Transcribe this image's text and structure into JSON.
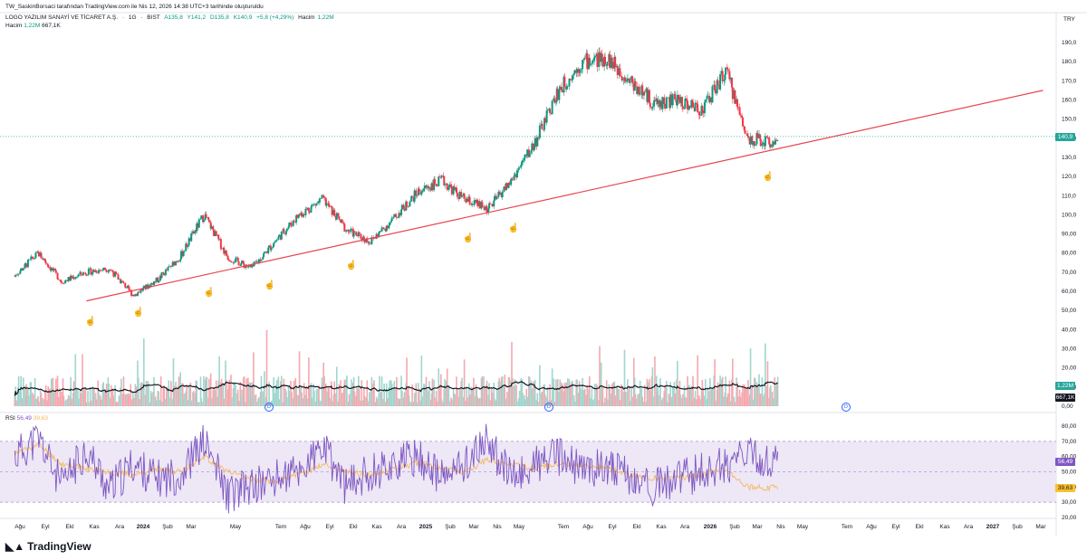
{
  "header": {
    "attribution": "TW_SaskinBorsaci tarafından TradingView.com ile Nis 12, 2026 14:38 UTC+3 tarihinde oluşturuldu",
    "symbol": "LOGO YAZILIM SANAYİ VE TİCARET A.Ş.",
    "interval": "1G",
    "exchange": "BIST",
    "open": "A135,8",
    "high": "Y141,2",
    "low": "D135,8",
    "close": "K140,9",
    "change": "+5,8 (+4,29%)",
    "volume_label": "Hacim",
    "volume_value": "1,22M",
    "currency": "TRY"
  },
  "volume_legend": {
    "label": "Hacim",
    "value": "1,22M",
    "ma": "667,1K"
  },
  "rsi_legend": {
    "label": "RSI",
    "value": "56,49",
    "ma": "39,63"
  },
  "badges": {
    "price": "140,9",
    "volume": "1,22M",
    "volume_ma": "667,1K",
    "rsi": "56,49",
    "rsi_ma": "39,63"
  },
  "branding": {
    "logo": "TradingView"
  },
  "colors": {
    "up": "#089981",
    "down": "#f23645",
    "trendline": "#e8434f",
    "rsi": "#7e57c2",
    "rsi_ma": "#f5b95a",
    "rsi_band": "#ede7f6",
    "price_badge": "#26a69a",
    "rsi_ma_badge": "#fbc02d",
    "dark": "#131722"
  },
  "chart_data": [
    {
      "type": "line",
      "title": "",
      "x": [
        "2023-08-01",
        "2023-09-01",
        "2023-10-01",
        "2023-11-01",
        "2023-12-01",
        "2024-01-01",
        "2024-02-01",
        "2024-03-01",
        "2024-04-01",
        "2024-05-01",
        "2024-06-01",
        "2024-07-01",
        "2024-08-01",
        "2024-09-01",
        "2024-10-01",
        "2024-11-01",
        "2024-12-01",
        "2025-01-01",
        "2025-02-01",
        "2025-03-01",
        "2025-04-01",
        "2025-05-01",
        "2025-06-01",
        "2025-07-01",
        "2025-08-01",
        "2025-09-01",
        "2025-10-01",
        "2025-11-01",
        "2025-12-01",
        "2026-01-01",
        "2026-02-01",
        "2026-03-01",
        "2026-04-01"
      ],
      "series": [
        {
          "values": [
            68,
            80,
            65,
            70,
            72,
            58,
            66,
            78,
            100,
            78,
            72,
            86,
            100,
            108,
            92,
            86,
            98,
            112,
            118,
            108,
            103,
            118,
            138,
            165,
            180,
            182,
            170,
            158,
            160,
            155,
            175,
            140,
            138
          ]
        }
      ],
      "trendline": {
        "start": [
          "2023-11-01",
          55
        ],
        "end": [
          "2027-03-15",
          165
        ]
      },
      "current_price": 140.9,
      "y_ticks": [
        "190,0",
        "180,0",
        "170,0",
        "160,0",
        "150,0",
        "140,0",
        "130,0",
        "120,0",
        "110,0",
        "100,0",
        "90,00",
        "80,00",
        "70,00",
        "60,00",
        "50,00",
        "40,00",
        "30,00",
        "20,00",
        "10,00",
        "0,00"
      ],
      "x_ticks": [
        "Ağu",
        "Eyl",
        "Ekl",
        "Kas",
        "Ara",
        "2024",
        "Şub",
        "Mar",
        "May",
        "Tem",
        "Ağu",
        "Eyl",
        "Ekl",
        "Kas",
        "Ara",
        "2025",
        "Şub",
        "Mar",
        "Nis",
        "May",
        "Tem",
        "Ağu",
        "Eyl",
        "Ekl",
        "Kas",
        "Ara",
        "2026",
        "Şub",
        "Mar",
        "Nis",
        "May",
        "Tem",
        "Ağu",
        "Eyl",
        "Ekl",
        "Kas",
        "Ara",
        "2027",
        "Şub",
        "Mar"
      ],
      "ylim": [
        0,
        195
      ]
    },
    {
      "type": "line",
      "title": "",
      "x": [
        "2023-08-01",
        "2023-09-01",
        "2023-10-01",
        "2023-11-01",
        "2023-12-01",
        "2024-01-01",
        "2024-02-01",
        "2024-03-01",
        "2024-04-01",
        "2024-05-01",
        "2024-06-01",
        "2024-07-01",
        "2024-08-01",
        "2024-09-01",
        "2024-10-01",
        "2024-11-01",
        "2024-12-01",
        "2025-01-01",
        "2025-02-01",
        "2025-03-01",
        "2025-04-01",
        "2025-05-01",
        "2025-06-01",
        "2025-07-01",
        "2025-08-01",
        "2025-09-01",
        "2025-10-01",
        "2025-11-01",
        "2025-12-01",
        "2026-01-01",
        "2026-02-01",
        "2026-03-01",
        "2026-04-01"
      ],
      "series": [
        {
          "values": [
            60,
            72,
            40,
            65,
            38,
            55,
            45,
            48,
            70,
            35,
            40,
            45,
            50,
            65,
            40,
            50,
            55,
            60,
            45,
            55,
            70,
            45,
            55,
            60,
            50,
            55,
            45,
            40,
            45,
            50,
            55,
            60,
            56
          ]
        },
        {
          "values": [
            62,
            68,
            55,
            52,
            50,
            48,
            52,
            50,
            60,
            50,
            45,
            44,
            48,
            55,
            50,
            48,
            52,
            56,
            52,
            50,
            58,
            55,
            52,
            56,
            54,
            52,
            48,
            46,
            46,
            48,
            52,
            40,
            39.6
          ]
        }
      ],
      "y_ticks": [
        "80,00",
        "70,00",
        "60,00",
        "50,00",
        "40,00",
        "30,00",
        "20,00"
      ],
      "ylim": [
        18,
        85
      ]
    }
  ]
}
